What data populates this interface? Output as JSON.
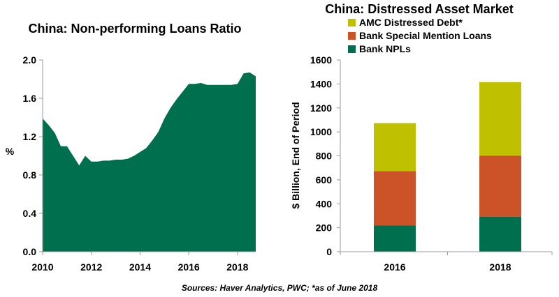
{
  "source": "Sources: Haver Analytics,  PWC; *as of June 2018",
  "chart_data": [
    {
      "type": "area",
      "title": "China: Non-performing Loans Ratio",
      "ylabel": "%",
      "xlabel": "",
      "xlim": [
        2010,
        2018.75
      ],
      "ylim": [
        0,
        2.0
      ],
      "x_ticks": [
        "2010",
        "2012",
        "2014",
        "2016",
        "2018"
      ],
      "y_ticks": [
        "0.0",
        "0.4",
        "0.8",
        "1.2",
        "1.6",
        "2.0"
      ],
      "color": "#006F4E",
      "x": [
        2010,
        2010.25,
        2010.5,
        2010.75,
        2011,
        2011.25,
        2011.5,
        2011.75,
        2012,
        2012.25,
        2012.5,
        2012.75,
        2013,
        2013.25,
        2013.5,
        2013.75,
        2014,
        2014.25,
        2014.5,
        2014.75,
        2015,
        2015.25,
        2015.5,
        2015.75,
        2016,
        2016.25,
        2016.5,
        2016.75,
        2017,
        2017.25,
        2017.5,
        2017.75,
        2018,
        2018.25,
        2018.5,
        2018.75
      ],
      "values": [
        1.39,
        1.32,
        1.24,
        1.1,
        1.1,
        1.0,
        0.9,
        1.0,
        0.94,
        0.94,
        0.95,
        0.95,
        0.96,
        0.96,
        0.97,
        1.0,
        1.04,
        1.08,
        1.16,
        1.25,
        1.39,
        1.5,
        1.59,
        1.67,
        1.75,
        1.75,
        1.76,
        1.74,
        1.74,
        1.74,
        1.74,
        1.74,
        1.75,
        1.86,
        1.87,
        1.83
      ]
    },
    {
      "type": "bar",
      "stacked": true,
      "title": "China: Distressed Asset Market",
      "ylabel": "$ Billion, End of Period",
      "xlabel": "",
      "categories": [
        "2016",
        "2018"
      ],
      "ylim": [
        0,
        1600
      ],
      "y_ticks": [
        "0",
        "200",
        "400",
        "600",
        "800",
        "1000",
        "1200",
        "1400",
        "1600"
      ],
      "series": [
        {
          "name": "Bank NPLs",
          "color": "#006F4E",
          "values": [
            218,
            293
          ]
        },
        {
          "name": "Bank Special Mention Loans",
          "color": "#CC5228",
          "values": [
            455,
            507
          ]
        },
        {
          "name": "AMC Distressed Debt*",
          "color": "#BFC000",
          "values": [
            400,
            615
          ]
        }
      ],
      "legend_order": [
        "AMC Distressed Debt*",
        "Bank Special Mention Loans",
        "Bank NPLs"
      ],
      "legend": "top-left"
    }
  ]
}
